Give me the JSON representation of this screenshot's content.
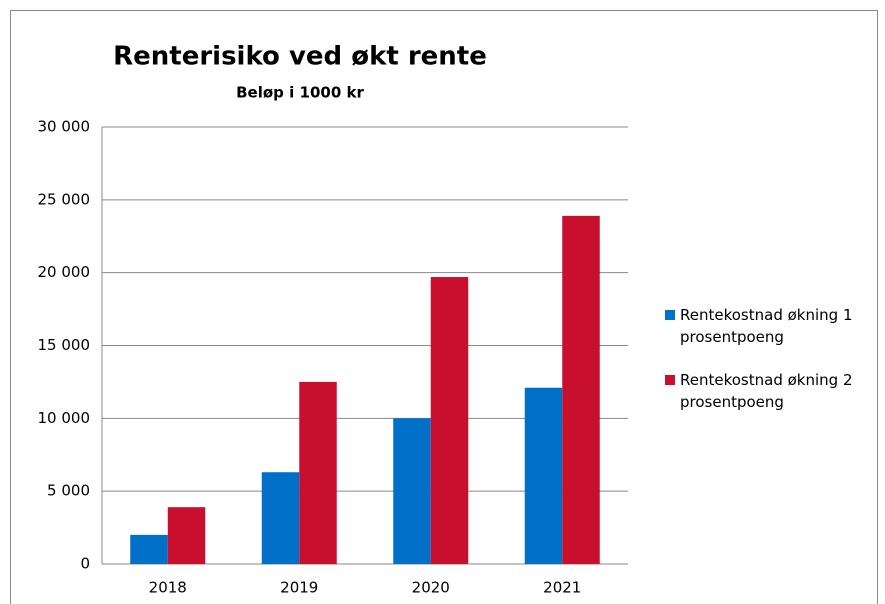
{
  "chart_data": {
    "type": "bar",
    "title": "Renterisiko ved økt rente",
    "subtitle": "Beløp i 1000 kr",
    "categories": [
      "2018",
      "2019",
      "2020",
      "2021"
    ],
    "series": [
      {
        "name": "Rentekostnad økning 1 prosentpoeng",
        "color": "#0070c8",
        "values": [
          2000,
          6300,
          10000,
          12100
        ]
      },
      {
        "name": "Rentekostnad økning 2 prosentpoeng",
        "color": "#c8102e",
        "values": [
          3900,
          12500,
          19700,
          23900
        ]
      }
    ],
    "ylim": [
      0,
      30000
    ],
    "yticks": [
      0,
      {
        "value": 5000,
        "label": "5 000"
      },
      {
        "value": 10000,
        "label": "10 000"
      },
      {
        "value": 15000,
        "label": "15 000"
      },
      {
        "value": 20000,
        "label": "20 000"
      },
      {
        "value": 25000,
        "label": "25 000"
      },
      {
        "value": 30000,
        "label": "30 000"
      }
    ],
    "grid": true,
    "legend": "right"
  }
}
